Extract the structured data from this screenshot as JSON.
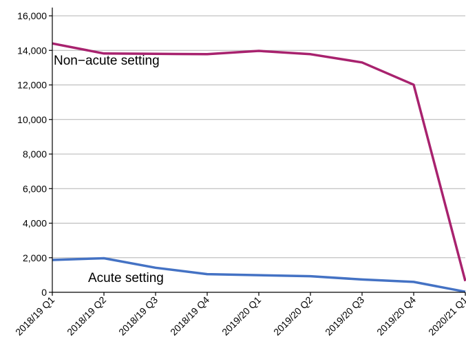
{
  "chart_data": {
    "type": "line",
    "title": "",
    "xlabel": "",
    "ylabel": "",
    "categories": [
      "2018/19 Q1",
      "2018/19 Q2",
      "2018/19 Q3",
      "2018/19 Q4",
      "2019/20 Q1",
      "2019/20 Q2",
      "2019/20 Q3",
      "2019/20 Q4",
      "2020/21 Q1"
    ],
    "ylim": [
      0,
      16000
    ],
    "y_ticks": [
      0,
      2000,
      4000,
      6000,
      8000,
      10000,
      12000,
      14000,
      16000
    ],
    "y_tick_labels": [
      "0",
      "2,000",
      "4,000",
      "6,000",
      "8,000",
      "10,000",
      "12,000",
      "14,000",
      "16,000"
    ],
    "grid": true,
    "series": [
      {
        "name": "Non−acute setting",
        "color": "#a8226e",
        "values": [
          14400,
          13820,
          13800,
          13780,
          13970,
          13780,
          13300,
          12010,
          650
        ]
      },
      {
        "name": "Acute setting",
        "color": "#4472c4",
        "values": [
          1870,
          1970,
          1420,
          1050,
          990,
          930,
          740,
          600,
          30
        ]
      }
    ]
  }
}
